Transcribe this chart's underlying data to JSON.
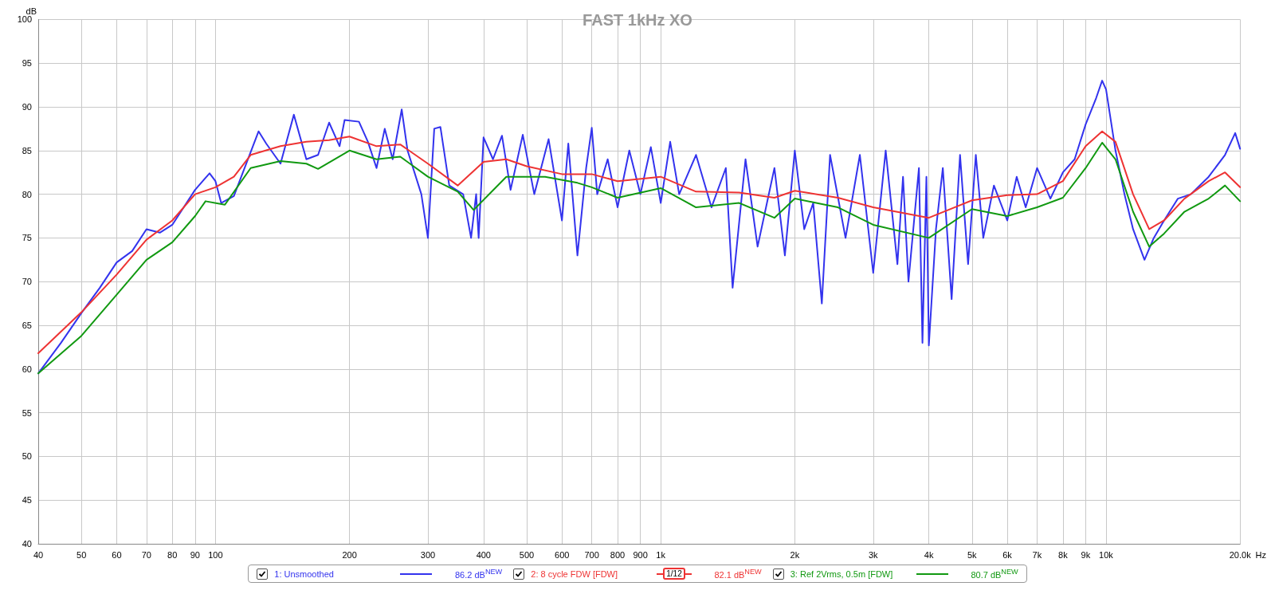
{
  "chart_data": {
    "type": "line",
    "title": "FAST 1kHz XO",
    "ylabel": "dB",
    "log": "x",
    "grid": true,
    "legend": "bottom",
    "marker": "none",
    "line_style": "solid",
    "xlim": [
      40,
      20000
    ],
    "ylim": [
      40,
      100
    ],
    "xticks": [
      40,
      50,
      60,
      70,
      80,
      90,
      100,
      200,
      300,
      400,
      500,
      600,
      700,
      800,
      900,
      {
        "value": 1000,
        "label": "1k"
      },
      {
        "value": 2000,
        "label": "2k"
      },
      {
        "value": 3000,
        "label": "3k"
      },
      {
        "value": 4000,
        "label": "4k"
      },
      {
        "value": 5000,
        "label": "5k"
      },
      {
        "value": 6000,
        "label": "6k"
      },
      {
        "value": 7000,
        "label": "7k"
      },
      {
        "value": 8000,
        "label": "8k"
      },
      {
        "value": 9000,
        "label": "9k"
      },
      {
        "value": 10000,
        "label": "10k"
      },
      {
        "value": 20000,
        "label": "20.0k"
      }
    ],
    "xlabel": "Hz",
    "yticks": [
      40,
      45,
      50,
      55,
      60,
      65,
      70,
      75,
      80,
      85,
      90,
      95,
      100
    ],
    "annotations": [
      "86.2 dB$^{NEW}$",
      "1/12",
      "82.1 dB$^{NEW}$",
      "80.7 dB$^{NEW}$"
    ],
    "series": [
      {
        "name": "1: Unsmoothed",
        "color": "#3333ee",
        "x": [
          40,
          45,
          50,
          55,
          60,
          65,
          70,
          75,
          80,
          90,
          97,
          100,
          103,
          110,
          125,
          130,
          140,
          150,
          160,
          170,
          180,
          190,
          195,
          210,
          220,
          230,
          240,
          250,
          262,
          270,
          290,
          300,
          310,
          320,
          335,
          360,
          375,
          385,
          390,
          400,
          420,
          440,
          460,
          490,
          520,
          560,
          600,
          620,
          650,
          680,
          700,
          720,
          760,
          800,
          850,
          900,
          950,
          1000,
          1050,
          1100,
          1200,
          1300,
          1400,
          1450,
          1550,
          1650,
          1800,
          1900,
          2000,
          2100,
          2200,
          2300,
          2400,
          2600,
          2800,
          3000,
          3200,
          3400,
          3500,
          3600,
          3800,
          3870,
          3950,
          4000,
          4150,
          4300,
          4500,
          4700,
          4900,
          5100,
          5300,
          5600,
          6000,
          6300,
          6600,
          7000,
          7500,
          8000,
          8500,
          9000,
          9500,
          9800,
          10000,
          10500,
          11000,
          11500,
          12200,
          12800,
          13500,
          14500,
          15500,
          17000,
          18500,
          19500,
          20000
        ],
        "values": [
          59.5,
          63,
          66.4,
          69.3,
          72.2,
          73.5,
          76,
          75.6,
          76.5,
          80.5,
          82.4,
          81.5,
          79,
          79.8,
          87.2,
          85.8,
          83.5,
          89.1,
          84,
          84.5,
          88.2,
          85.5,
          88.5,
          88.3,
          86,
          83,
          87.5,
          84,
          89.7,
          85,
          80,
          75,
          87.5,
          87.7,
          81,
          80,
          75,
          80,
          75,
          86.5,
          84,
          86.7,
          80.5,
          86.8,
          80,
          86.3,
          77,
          85.8,
          73,
          83,
          87.6,
          80,
          84,
          78.5,
          85,
          80,
          85.4,
          79,
          86,
          80,
          84.5,
          78.5,
          83,
          69.3,
          84,
          74,
          83,
          73,
          85,
          76,
          79,
          67.5,
          84.5,
          75,
          84.5,
          71,
          85,
          72,
          82,
          70,
          83,
          63,
          82,
          62.7,
          76,
          83,
          68,
          84.5,
          72,
          84.5,
          75,
          81,
          77,
          82,
          78.5,
          83,
          79.5,
          82.5,
          84,
          88,
          91,
          93,
          92,
          85,
          80,
          76,
          72.5,
          75,
          77,
          79.5,
          80,
          82,
          84.5,
          87,
          85.2
        ]
      },
      {
        "name": "2: 8 cycle FDW [FDW]",
        "color": "#ee3333",
        "x": [
          40,
          50,
          60,
          70,
          80,
          90,
          100,
          110,
          120,
          140,
          160,
          180,
          200,
          230,
          260,
          300,
          350,
          400,
          450,
          500,
          600,
          700,
          800,
          1000,
          1200,
          1500,
          1800,
          2000,
          2500,
          3000,
          4000,
          5000,
          6000,
          7000,
          8000,
          9000,
          9800,
          10500,
          11500,
          12500,
          13500,
          15000,
          17000,
          18500,
          20000
        ],
        "values": [
          61.8,
          66.5,
          70.8,
          74.8,
          77,
          80,
          80.8,
          82,
          84.5,
          85.5,
          86,
          86.2,
          86.6,
          85.5,
          85.7,
          83.5,
          81,
          83.7,
          84,
          83.2,
          82.3,
          82.3,
          81.5,
          82,
          80.3,
          80.2,
          79.6,
          80.4,
          79.6,
          78.5,
          77.3,
          79.3,
          79.9,
          80,
          81.5,
          85.5,
          87.2,
          86,
          80,
          76,
          77,
          79.5,
          81.5,
          82.5,
          80.8
        ]
      },
      {
        "name": "3: Ref 2Vrms, 0.5m [FDW]",
        "color": "#119911",
        "x": [
          40,
          50,
          60,
          70,
          80,
          90,
          95,
          105,
          120,
          140,
          160,
          170,
          200,
          230,
          260,
          300,
          350,
          380,
          450,
          550,
          650,
          700,
          800,
          1000,
          1200,
          1500,
          1800,
          2000,
          2500,
          3000,
          4000,
          5000,
          6000,
          7000,
          8000,
          9000,
          9800,
          10500,
          11500,
          12500,
          13500,
          15000,
          17000,
          18500,
          20000
        ],
        "values": [
          59.5,
          63.8,
          68.5,
          72.5,
          74.5,
          77.5,
          79.2,
          78.8,
          83,
          83.8,
          83.5,
          82.9,
          85,
          84,
          84.3,
          82,
          80.3,
          78.2,
          82,
          82,
          81.3,
          80.8,
          79.6,
          80.7,
          78.5,
          79,
          77.3,
          79.5,
          78.5,
          76.5,
          75,
          78.3,
          77.5,
          78.5,
          79.6,
          83,
          85.9,
          84,
          78,
          74,
          75.5,
          78,
          79.5,
          81,
          79.2
        ]
      }
    ]
  }
}
